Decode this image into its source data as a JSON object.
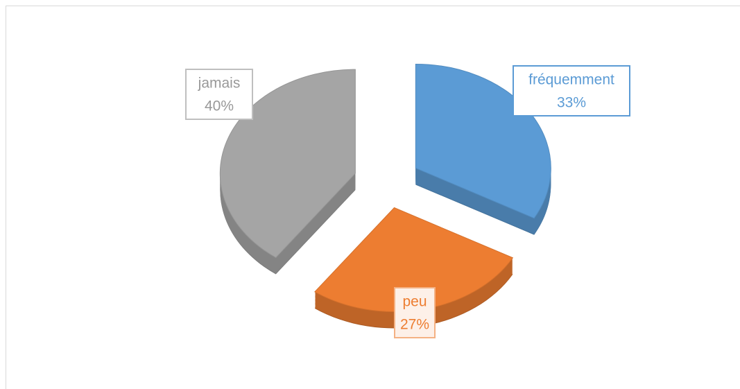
{
  "chart_data": {
    "type": "pie",
    "categories": [
      "fréquemment",
      "peu",
      "jamais"
    ],
    "values": [
      33,
      27,
      40
    ],
    "value_labels": [
      "33%",
      "27%",
      "40%"
    ],
    "colors": [
      "#5b9bd5",
      "#ed7d31",
      "#a5a5a5"
    ]
  }
}
